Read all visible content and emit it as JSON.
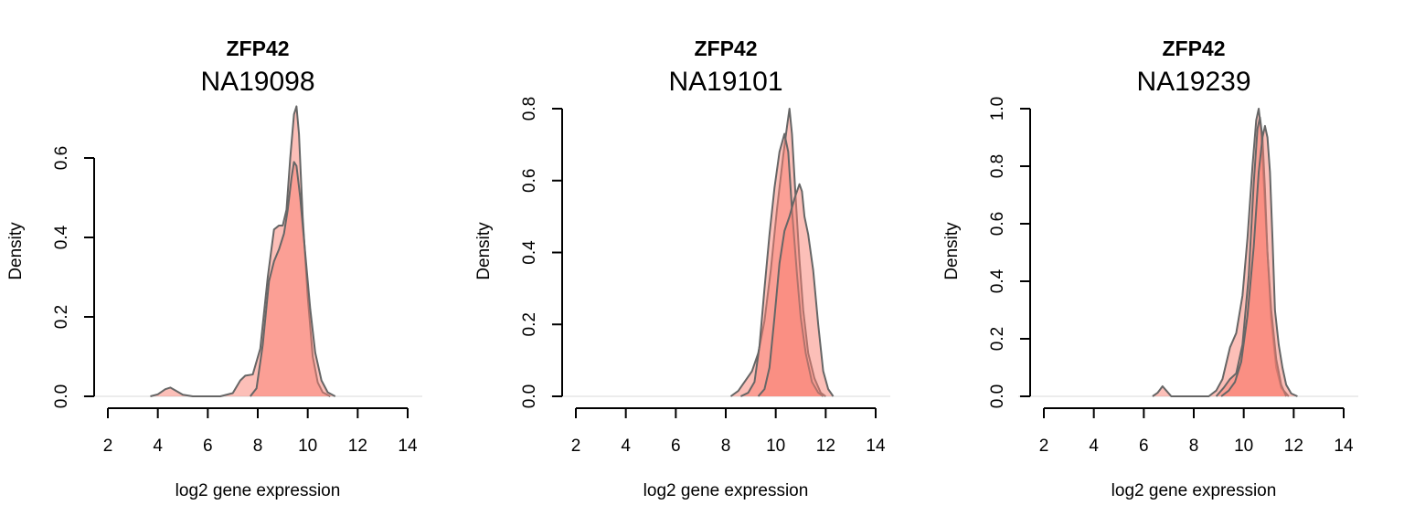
{
  "chart_data": [
    {
      "type": "area",
      "title": "ZFP42",
      "subtitle": "NA19098",
      "xlabel": "log2 gene expression",
      "ylabel": "Density",
      "xlim": [
        2,
        14
      ],
      "ylim": [
        0,
        0.6
      ],
      "xticks": [
        "2",
        "4",
        "6",
        "8",
        "10",
        "12",
        "14"
      ],
      "yticks": [
        "0.0",
        "0.2",
        "0.4",
        "0.6"
      ],
      "fill_color": "#FA8072",
      "line_color": "#666666",
      "series": [
        {
          "points": [
            [
              3.7,
              0
            ],
            [
              4.0,
              0.005
            ],
            [
              4.3,
              0.018
            ],
            [
              4.5,
              0.022
            ],
            [
              4.7,
              0.015
            ],
            [
              5.0,
              0.004
            ],
            [
              5.4,
              0
            ],
            [
              6.5,
              0
            ],
            [
              7.0,
              0.008
            ],
            [
              7.3,
              0.04
            ],
            [
              7.5,
              0.052
            ],
            [
              7.8,
              0.055
            ],
            [
              8.1,
              0.12
            ],
            [
              8.4,
              0.3
            ],
            [
              8.65,
              0.42
            ],
            [
              8.85,
              0.43
            ],
            [
              9.0,
              0.43
            ],
            [
              9.15,
              0.47
            ],
            [
              9.3,
              0.6
            ],
            [
              9.45,
              0.71
            ],
            [
              9.55,
              0.73
            ],
            [
              9.65,
              0.66
            ],
            [
              9.8,
              0.45
            ],
            [
              10.0,
              0.25
            ],
            [
              10.2,
              0.1
            ],
            [
              10.4,
              0.035
            ],
            [
              10.6,
              0.01
            ],
            [
              10.9,
              0
            ]
          ]
        },
        {
          "points": [
            [
              7.7,
              0
            ],
            [
              7.95,
              0.02
            ],
            [
              8.2,
              0.13
            ],
            [
              8.45,
              0.29
            ],
            [
              8.65,
              0.34
            ],
            [
              8.85,
              0.37
            ],
            [
              9.05,
              0.41
            ],
            [
              9.2,
              0.47
            ],
            [
              9.35,
              0.55
            ],
            [
              9.45,
              0.59
            ],
            [
              9.55,
              0.58
            ],
            [
              9.7,
              0.5
            ],
            [
              9.9,
              0.36
            ],
            [
              10.1,
              0.22
            ],
            [
              10.3,
              0.11
            ],
            [
              10.55,
              0.04
            ],
            [
              10.8,
              0.01
            ],
            [
              11.1,
              0
            ]
          ]
        }
      ]
    },
    {
      "type": "area",
      "title": "ZFP42",
      "subtitle": "NA19101",
      "xlabel": "log2 gene expression",
      "ylabel": "Density",
      "xlim": [
        2,
        14
      ],
      "ylim": [
        0,
        0.8
      ],
      "xticks": [
        "2",
        "4",
        "6",
        "8",
        "10",
        "12",
        "14"
      ],
      "yticks": [
        "0.0",
        "0.2",
        "0.4",
        "0.6",
        "0.8"
      ],
      "fill_color": "#FA8072",
      "line_color": "#666666",
      "series": [
        {
          "points": [
            [
              8.2,
              0
            ],
            [
              8.5,
              0.015
            ],
            [
              8.8,
              0.045
            ],
            [
              9.05,
              0.07
            ],
            [
              9.3,
              0.12
            ],
            [
              9.55,
              0.21
            ],
            [
              9.8,
              0.35
            ],
            [
              10.05,
              0.52
            ],
            [
              10.3,
              0.67
            ],
            [
              10.45,
              0.75
            ],
            [
              10.55,
              0.8
            ],
            [
              10.65,
              0.73
            ],
            [
              10.8,
              0.55
            ],
            [
              10.95,
              0.38
            ],
            [
              11.1,
              0.24
            ],
            [
              11.3,
              0.12
            ],
            [
              11.55,
              0.05
            ],
            [
              11.8,
              0.01
            ],
            [
              12.0,
              0
            ]
          ]
        },
        {
          "points": [
            [
              8.6,
              0
            ],
            [
              8.9,
              0.01
            ],
            [
              9.15,
              0.04
            ],
            [
              9.35,
              0.14
            ],
            [
              9.55,
              0.3
            ],
            [
              9.75,
              0.45
            ],
            [
              9.95,
              0.58
            ],
            [
              10.15,
              0.68
            ],
            [
              10.35,
              0.73
            ],
            [
              10.5,
              0.68
            ],
            [
              10.65,
              0.52
            ],
            [
              10.85,
              0.34
            ],
            [
              11.0,
              0.22
            ],
            [
              11.2,
              0.12
            ],
            [
              11.45,
              0.04
            ],
            [
              11.7,
              0.01
            ],
            [
              11.9,
              0
            ]
          ]
        },
        {
          "points": [
            [
              9.3,
              0
            ],
            [
              9.55,
              0.02
            ],
            [
              9.75,
              0.08
            ],
            [
              9.95,
              0.22
            ],
            [
              10.15,
              0.37
            ],
            [
              10.35,
              0.46
            ],
            [
              10.55,
              0.5
            ],
            [
              10.75,
              0.55
            ],
            [
              10.95,
              0.59
            ],
            [
              11.05,
              0.57
            ],
            [
              11.15,
              0.5
            ],
            [
              11.3,
              0.45
            ],
            [
              11.5,
              0.35
            ],
            [
              11.7,
              0.2
            ],
            [
              11.9,
              0.07
            ],
            [
              12.1,
              0.02
            ],
            [
              12.3,
              0
            ]
          ]
        }
      ]
    },
    {
      "type": "area",
      "title": "ZFP42",
      "subtitle": "NA19239",
      "xlabel": "log2 gene expression",
      "ylabel": "Density",
      "xlim": [
        2,
        14
      ],
      "ylim": [
        0,
        1.0
      ],
      "xticks": [
        "2",
        "4",
        "6",
        "8",
        "10",
        "12",
        "14"
      ],
      "yticks": [
        "0.0",
        "0.2",
        "0.4",
        "0.6",
        "0.8",
        "1.0"
      ],
      "fill_color": "#FA8072",
      "line_color": "#666666",
      "series": [
        {
          "points": [
            [
              6.35,
              0
            ],
            [
              6.55,
              0.012
            ],
            [
              6.75,
              0.035
            ],
            [
              6.9,
              0.02
            ],
            [
              7.1,
              0
            ],
            [
              8.6,
              0
            ],
            [
              8.9,
              0.02
            ],
            [
              9.15,
              0.06
            ],
            [
              9.45,
              0.17
            ],
            [
              9.7,
              0.22
            ],
            [
              9.95,
              0.35
            ],
            [
              10.15,
              0.55
            ],
            [
              10.35,
              0.8
            ],
            [
              10.5,
              0.96
            ],
            [
              10.6,
              1.0
            ],
            [
              10.7,
              0.92
            ],
            [
              10.8,
              0.75
            ],
            [
              10.95,
              0.5
            ],
            [
              11.1,
              0.27
            ],
            [
              11.3,
              0.1
            ],
            [
              11.5,
              0.03
            ],
            [
              11.8,
              0
            ]
          ]
        },
        {
          "points": [
            [
              8.9,
              0
            ],
            [
              9.2,
              0.03
            ],
            [
              9.45,
              0.06
            ],
            [
              9.7,
              0.08
            ],
            [
              9.95,
              0.18
            ],
            [
              10.2,
              0.42
            ],
            [
              10.4,
              0.74
            ],
            [
              10.55,
              0.93
            ],
            [
              10.65,
              0.97
            ],
            [
              10.75,
              0.9
            ],
            [
              10.85,
              0.72
            ],
            [
              10.95,
              0.5
            ],
            [
              11.1,
              0.3
            ],
            [
              11.3,
              0.13
            ],
            [
              11.5,
              0.04
            ],
            [
              11.7,
              0
            ]
          ]
        },
        {
          "points": [
            [
              9.1,
              0
            ],
            [
              9.4,
              0.02
            ],
            [
              9.65,
              0.05
            ],
            [
              9.9,
              0.12
            ],
            [
              10.15,
              0.28
            ],
            [
              10.4,
              0.52
            ],
            [
              10.6,
              0.78
            ],
            [
              10.75,
              0.9
            ],
            [
              10.85,
              0.94
            ],
            [
              10.95,
              0.9
            ],
            [
              11.05,
              0.78
            ],
            [
              11.15,
              0.55
            ],
            [
              11.25,
              0.3
            ],
            [
              11.4,
              0.18
            ],
            [
              11.55,
              0.1
            ],
            [
              11.7,
              0.04
            ],
            [
              11.9,
              0.01
            ],
            [
              12.15,
              0
            ]
          ]
        }
      ]
    }
  ]
}
